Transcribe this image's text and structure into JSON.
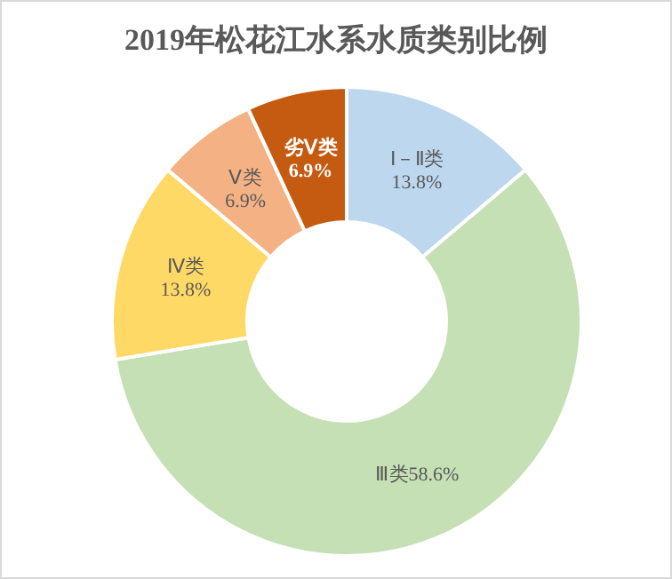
{
  "chart_data": {
    "type": "donut",
    "title": "2019年松花江水系水质类别比例",
    "categories": [
      "Ⅰ－Ⅱ类",
      "Ⅲ类",
      "Ⅳ类",
      "Ⅴ类",
      "劣Ⅴ类"
    ],
    "values": [
      13.8,
      58.6,
      13.8,
      6.9,
      6.9
    ],
    "colors": [
      "#bdd7ee",
      "#c5e0b4",
      "#ffd966",
      "#f4b183",
      "#c55a11"
    ],
    "value_labels": [
      "13.8%",
      "58.6%",
      "13.8%",
      "6.9%",
      "6.9%"
    ],
    "legend": false
  }
}
